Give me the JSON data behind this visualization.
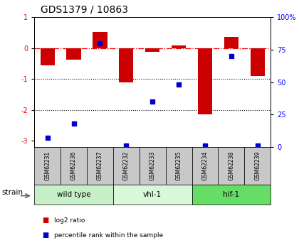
{
  "title": "GDS1379 / 10863",
  "samples": [
    "GSM62231",
    "GSM62236",
    "GSM62237",
    "GSM62232",
    "GSM62233",
    "GSM62235",
    "GSM62234",
    "GSM62238",
    "GSM62239"
  ],
  "log2_ratio": [
    -0.55,
    -0.38,
    0.52,
    -1.1,
    -0.12,
    0.08,
    -2.15,
    0.35,
    -0.9
  ],
  "percentile": [
    7,
    18,
    80,
    1,
    35,
    48,
    1,
    70,
    1
  ],
  "groups": [
    {
      "label": "wild type",
      "start": 0,
      "end": 3,
      "color": "#c8f0c8"
    },
    {
      "label": "vhl-1",
      "start": 3,
      "end": 6,
      "color": "#d8f8d8"
    },
    {
      "label": "hif-1",
      "start": 6,
      "end": 9,
      "color": "#66dd66"
    }
  ],
  "ylim": [
    -3.2,
    1.0
  ],
  "right_ylim": [
    0,
    100
  ],
  "right_yticks": [
    0,
    25,
    50,
    75,
    100
  ],
  "right_yticklabels": [
    "0",
    "25",
    "50",
    "75",
    "100%"
  ],
  "left_yticks": [
    -3,
    -2,
    -1,
    0,
    1
  ],
  "dotted_lines": [
    -1,
    -2
  ],
  "bar_color": "#cc0000",
  "dot_color": "#0000cc",
  "background_color": "#ffffff",
  "legend_bar_label": "log2 ratio",
  "legend_dot_label": "percentile rank within the sample",
  "strain_label": "strain",
  "sample_bg": "#c8c8c8"
}
